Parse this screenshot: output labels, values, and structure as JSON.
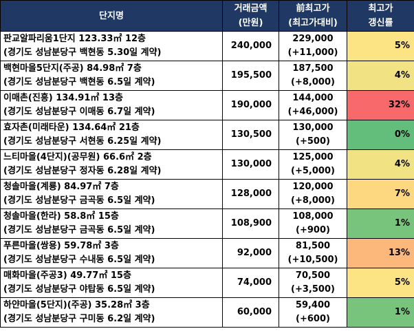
{
  "header": {
    "name": "단지명",
    "price_line1": "거래금액",
    "price_line2": "(만원)",
    "prev_line1": "前최고가",
    "prev_line2": "(최고가대비)",
    "rate_line1": "최고가",
    "rate_line2": "갱신률"
  },
  "rows": [
    {
      "name": "판교알파리움1단지 123.33㎡ 12층",
      "location": "(경기도 성남분당구 백현동 5.30일 계약)",
      "price": "240,000",
      "prev": "229,000",
      "diff": "(+11,000)",
      "rate": "5%",
      "color": "#fce383"
    },
    {
      "name": "백현마을5단지(주공) 84.98㎡ 7층",
      "location": "(경기도 성남분당구 백현동 6.5일 계약)",
      "price": "195,500",
      "prev": "187,500",
      "diff": "(+8,000)",
      "rate": "4%",
      "color": "#f1e284"
    },
    {
      "name": "이매촌(진흥) 134.91㎡ 13층",
      "location": "(경기도 성남분당구 이매동 6.7일 계약)",
      "price": "190,000",
      "prev": "144,000",
      "diff": "(+46,000)",
      "rate": "32%",
      "color": "#f8696b"
    },
    {
      "name": "효자촌(미래타운) 134.64㎡ 21층",
      "location": "(경기도 성남분당구 서현동 6.25일 계약)",
      "price": "130,500",
      "prev": "130,000",
      "diff": "(+500)",
      "rate": "0%",
      "color": "#63be7b"
    },
    {
      "name": "느티마을(4단지)(공무원) 66.6㎡ 2층",
      "location": "(경기도 성남분당구 정자동 6.28일 계약)",
      "price": "130,000",
      "prev": "125,000",
      "diff": "(+5,000)",
      "rate": "4%",
      "color": "#f1e284"
    },
    {
      "name": "청솔마을(계룡) 84.97㎡ 7층",
      "location": "(경기도 성남분당구 금곡동 6.5일 계약)",
      "price": "128,000",
      "prev": "120,000",
      "diff": "(+8,000)",
      "rate": "7%",
      "color": "#fdd880"
    },
    {
      "name": "청솔마을(한라) 58.8㎡ 15층",
      "location": "(경기도 성남분당구 금곡동 6.5일 계약)",
      "price": "108,900",
      "prev": "108,000",
      "diff": "(+900)",
      "rate": "1%",
      "color": "#79c47c"
    },
    {
      "name": "푸른마을(쌍용) 59.78㎡ 3층",
      "location": "(경기도 성남분당구 수내동 6.5일 계약)",
      "price": "92,000",
      "prev": "81,500",
      "diff": "(+10,500)",
      "rate": "13%",
      "color": "#fbb87a"
    },
    {
      "name": "매화마을(주공3) 49.77㎡ 15층",
      "location": "(경기도 성남분당구 야탑동 6.5일 계약)",
      "price": "74,000",
      "prev": "70,500",
      "diff": "(+3,500)",
      "rate": "5%",
      "color": "#fce383"
    },
    {
      "name": "하얀마을(5단지)(주공) 35.28㎡ 3층",
      "location": "(경기도 성남분당구 구미동 6.2일 계약)",
      "price": "60,000",
      "prev": "59,400",
      "diff": "(+600)",
      "rate": "1%",
      "color": "#79c47c"
    }
  ]
}
